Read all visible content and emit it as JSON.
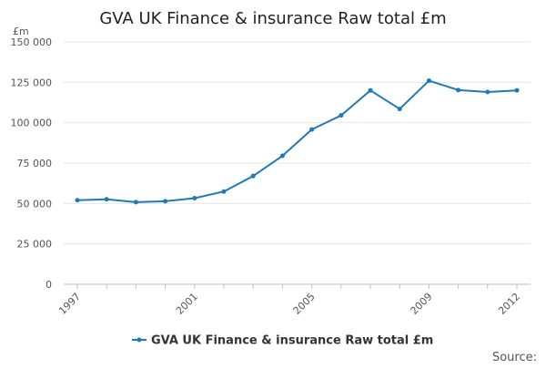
{
  "chart_data": {
    "type": "line",
    "title": "GVA UK Finance & insurance Raw total £m",
    "ylabel": "£m",
    "xlabel": "",
    "x": [
      1997,
      1998,
      1999,
      2000,
      2001,
      2002,
      2003,
      2004,
      2005,
      2006,
      2007,
      2008,
      2009,
      2010,
      2011,
      2012
    ],
    "x_tick_labels": [
      "1997",
      "2001",
      "2005",
      "2009",
      "2012"
    ],
    "x_tick_values": [
      1997,
      2001,
      2005,
      2009,
      2012
    ],
    "ylim": [
      0,
      150000
    ],
    "y_tick_values": [
      0,
      25000,
      50000,
      75000,
      100000,
      125000,
      150000
    ],
    "y_tick_labels": [
      "0",
      "25 000",
      "50 000",
      "75 000",
      "100 000",
      "125 000",
      "150 000"
    ],
    "series": [
      {
        "name": "GVA UK Finance & insurance Raw total £m",
        "color": "#1f7ab5",
        "values": [
          52000,
          52600,
          50800,
          51400,
          53300,
          57400,
          67000,
          79500,
          95800,
          104500,
          120000,
          108500,
          126000,
          120200,
          119000,
          120000
        ]
      }
    ],
    "grid": true,
    "legend_position": "bottom"
  },
  "footer": {
    "source_label": "Source:"
  }
}
